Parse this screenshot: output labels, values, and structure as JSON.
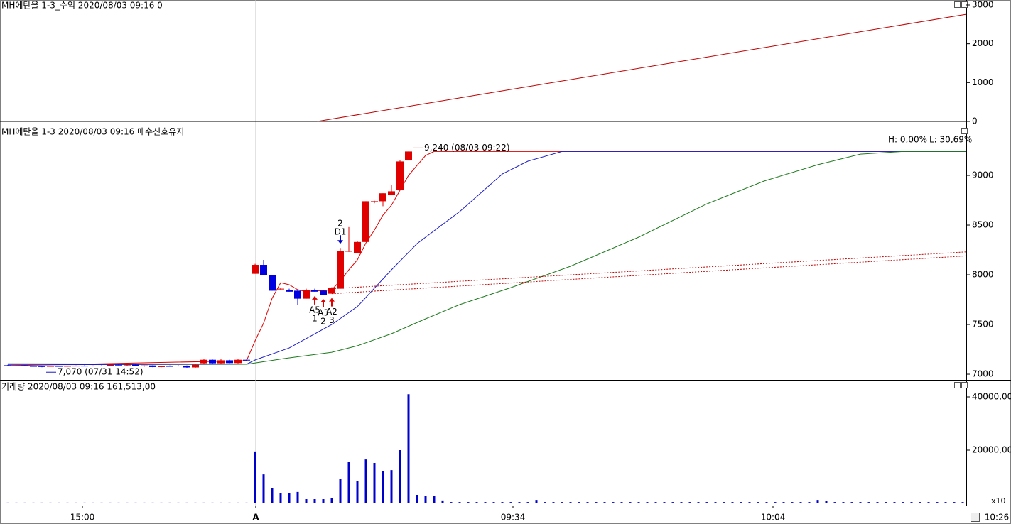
{
  "chart_data": [
    {
      "type": "line",
      "title": "MH에탄올 1-3_수익 2020/08/03 09:16 0",
      "ylim": [
        -110,
        3128
      ],
      "yticks": [
        0,
        1000,
        2000,
        3000
      ],
      "series": [
        {
          "color": "#c00000",
          "x": [
            36.3,
            112.4
          ],
          "values": [
            0,
            2760
          ]
        }
      ]
    },
    {
      "type": "candlestick",
      "title": "MH에탄올 1-3  2020/08/03 09:16 매수신호유지",
      "ylim": [
        6943,
        9493
      ],
      "yticks": [
        7000,
        7500,
        8000,
        8500,
        9000
      ],
      "up_color": "#e00000",
      "down_color": "#0000e0",
      "open": [
        7090,
        7085,
        7088,
        7082,
        7080,
        7078,
        7082,
        7080,
        7083,
        7085,
        7082,
        7086,
        7084,
        7095,
        7090,
        7096,
        7082,
        7088,
        7072,
        7082,
        7080,
        7086,
        7068,
        7110,
        7145,
        7110,
        7140,
        7112,
        7145,
        8010,
        8100,
        8000,
        7860,
        7850,
        7840,
        7760,
        7850,
        7840,
        7810,
        7860,
        8240,
        8220,
        8330,
        8740,
        8740,
        8800,
        8850,
        9150
      ],
      "high": [
        7095,
        7090,
        7090,
        7085,
        7085,
        7085,
        7085,
        7085,
        7088,
        7090,
        7088,
        7090,
        7098,
        7100,
        7098,
        7100,
        7090,
        7090,
        7085,
        7088,
        7090,
        7088,
        7100,
        7150,
        7148,
        7150,
        7145,
        7150,
        7148,
        8110,
        8150,
        8000,
        7870,
        7860,
        7850,
        7860,
        7860,
        7845,
        7875,
        8270,
        8480,
        8340,
        8740,
        8745,
        8820,
        8900,
        9150,
        9240
      ],
      "low": [
        7085,
        7080,
        7080,
        7075,
        7070,
        7075,
        7078,
        7075,
        7080,
        7080,
        7078,
        7082,
        7082,
        7088,
        7085,
        7080,
        7075,
        7070,
        7070,
        7078,
        7078,
        7065,
        7065,
        7105,
        7100,
        7105,
        7110,
        7108,
        7130,
        8010,
        8000,
        7840,
        7850,
        7830,
        7700,
        7760,
        7830,
        7800,
        7810,
        7860,
        8230,
        8220,
        8330,
        8720,
        8690,
        8800,
        8850,
        9150
      ],
      "close": [
        7085,
        7088,
        7082,
        7080,
        7078,
        7082,
        7080,
        7083,
        7085,
        7082,
        7086,
        7084,
        7095,
        7090,
        7096,
        7082,
        7088,
        7072,
        7082,
        7080,
        7086,
        7068,
        7095,
        7145,
        7110,
        7140,
        7112,
        7145,
        7140,
        8100,
        8000,
        7840,
        7860,
        7830,
        7760,
        7850,
        7830,
        7800,
        7870,
        8240,
        8240,
        8330,
        8740,
        8740,
        8820,
        8840,
        9140,
        9240
      ],
      "lines": [
        {
          "color": "#e00000",
          "style": "solid",
          "x": [
            0,
            28,
            29,
            30,
            31,
            32,
            33,
            34,
            35,
            36,
            37,
            38,
            39,
            40,
            41,
            42,
            43,
            44,
            45,
            46,
            47,
            48,
            49,
            50,
            112.4
          ],
          "values": [
            7086,
            7136,
            7336,
            7514,
            7764,
            7920,
            7900,
            7850,
            7830,
            7840,
            7840,
            7850,
            7940,
            8050,
            8150,
            8320,
            8450,
            8600,
            8700,
            8850,
            9000,
            9100,
            9200,
            9240,
            9240
          ]
        },
        {
          "color": "#1c1cc8",
          "style": "solid",
          "x": [
            0,
            28,
            29,
            33,
            38,
            41,
            45,
            48,
            53,
            58,
            61,
            65,
            112.4
          ],
          "values": [
            7095,
            7100,
            7143,
            7264,
            7500,
            7680,
            8050,
            8314,
            8636,
            9014,
            9143,
            9240,
            9240
          ]
        },
        {
          "color": "#1e7a1e",
          "style": "solid",
          "x": [
            0,
            28,
            32.4,
            38,
            41,
            45,
            49,
            53,
            59,
            66,
            74,
            82,
            88.7,
            95,
            100,
            105,
            112.4
          ],
          "values": [
            7105,
            7100,
            7157,
            7221,
            7286,
            7407,
            7557,
            7700,
            7871,
            8086,
            8379,
            8714,
            8943,
            9107,
            9214,
            9240,
            9240
          ]
        },
        {
          "color": "#c00000",
          "style": "dotted",
          "x": [
            38,
            112.4
          ],
          "values": [
            7860,
            8230
          ]
        },
        {
          "color": "#c00000",
          "style": "dotted",
          "x": [
            38,
            112.4
          ],
          "values": [
            7810,
            8190
          ]
        }
      ],
      "annotations": [
        {
          "text": "9,240 (08/03 09:22)",
          "x": 47,
          "value": 9240,
          "color": "#c00000"
        },
        {
          "text": "7,070 (07/31 14:52)",
          "x": 4,
          "value": 7070,
          "color": "#1c1cc8"
        }
      ],
      "range_labels": [
        {
          "text": "H: 0,00%",
          "color": "#c00000"
        },
        {
          "text": "L: 30,69%",
          "color": "#1c1cc8"
        }
      ],
      "signals": [
        {
          "type": "buy",
          "x": 36,
          "labels": [
            "A5",
            "1"
          ]
        },
        {
          "type": "buy",
          "x": 37,
          "labels": [
            "A3",
            "2"
          ]
        },
        {
          "type": "buy",
          "x": 38,
          "labels": [
            "A2",
            "3"
          ]
        },
        {
          "type": "sell",
          "x": 39,
          "labels": [
            "2",
            "D1"
          ]
        }
      ]
    },
    {
      "type": "bar",
      "title": "거래량  2020/08/03 09:16 161,513,00",
      "color": "#0000cc",
      "unit_label": "x10",
      "ylim": [
        -800,
        45870
      ],
      "yticks": [
        {
          "value": 20000,
          "label": "20000,00"
        },
        {
          "value": 40000,
          "label": "40000,00"
        }
      ],
      "values": [
        300,
        300,
        300,
        300,
        300,
        300,
        300,
        300,
        300,
        300,
        300,
        300,
        300,
        300,
        300,
        300,
        300,
        300,
        300,
        300,
        300,
        300,
        300,
        300,
        300,
        300,
        300,
        300,
        300,
        19500,
        10900,
        5600,
        4000,
        4000,
        4300,
        1600,
        1600,
        1600,
        2100,
        9300,
        15500,
        8300,
        16500,
        15200,
        12000,
        12500,
        20000,
        41000,
        3200,
        2700,
        2900,
        1100,
        500,
        500,
        500,
        500,
        500,
        500,
        500,
        500,
        500,
        500,
        1300,
        500,
        500,
        500,
        500,
        500,
        500,
        500,
        500,
        500,
        500,
        500,
        500,
        500,
        500,
        500,
        500,
        500,
        500,
        500,
        500,
        500,
        500,
        500,
        500,
        500,
        500,
        500,
        500,
        500,
        500,
        500,
        500,
        1300,
        900,
        500,
        500,
        500,
        500,
        500,
        500,
        500,
        500,
        500,
        500,
        500,
        500,
        500,
        500,
        500,
        500
      ]
    }
  ],
  "x_axis": {
    "xlim": [
      -0.917,
      112.417
    ],
    "separator_tick": 1,
    "xticks": [
      {
        "value": 8.75,
        "label": "15:00"
      },
      {
        "value": 29.08,
        "label": "A"
      },
      {
        "value": 59.25,
        "label": "09:34"
      },
      {
        "value": 89.75,
        "label": "10:04"
      },
      {
        "value": 116,
        "label": "10:26"
      }
    ]
  }
}
